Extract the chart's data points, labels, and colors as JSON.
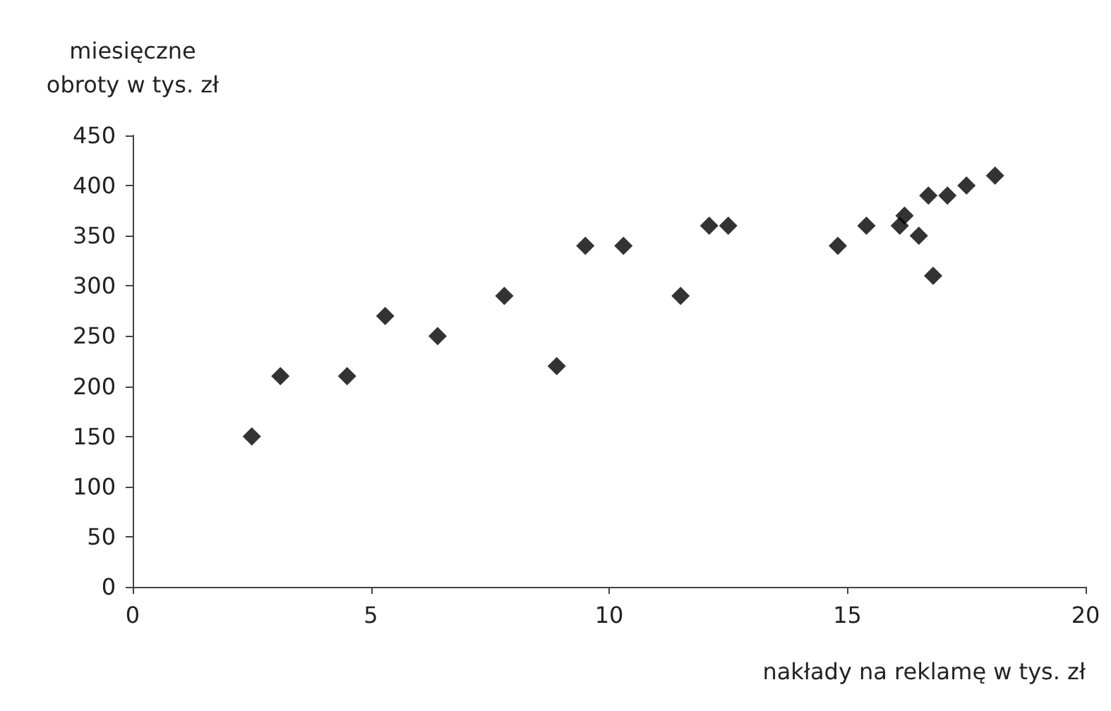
{
  "chart_data": {
    "type": "scatter",
    "xlabel": "nakłady na reklamę w tys. zł",
    "ylabel": "miesięczne\nobroty w tys. zł",
    "series": [
      {
        "color": "#000000",
        "x": [
          2.5,
          3.1,
          4.5,
          5.3,
          6.4,
          7.8,
          8.9,
          9.5,
          10.3,
          11.5,
          12.1,
          12.5,
          14.8,
          15.4,
          16.1,
          16.2,
          16.5,
          16.7,
          16.8,
          17.1,
          17.5,
          18.1
        ],
        "values": [
          150,
          210,
          210,
          270,
          250,
          290,
          220,
          340,
          340,
          290,
          360,
          360,
          340,
          360,
          360,
          370,
          350,
          390,
          310,
          390,
          400,
          410
        ]
      }
    ],
    "xlim": [
      0,
      20
    ],
    "xticks": [
      0,
      5,
      10,
      15,
      20
    ],
    "ylim": [
      0,
      450
    ],
    "yticks": [
      0,
      50,
      100,
      150,
      200,
      250,
      300,
      350,
      400,
      450
    ],
    "grid": false,
    "marker": "diamond"
  }
}
